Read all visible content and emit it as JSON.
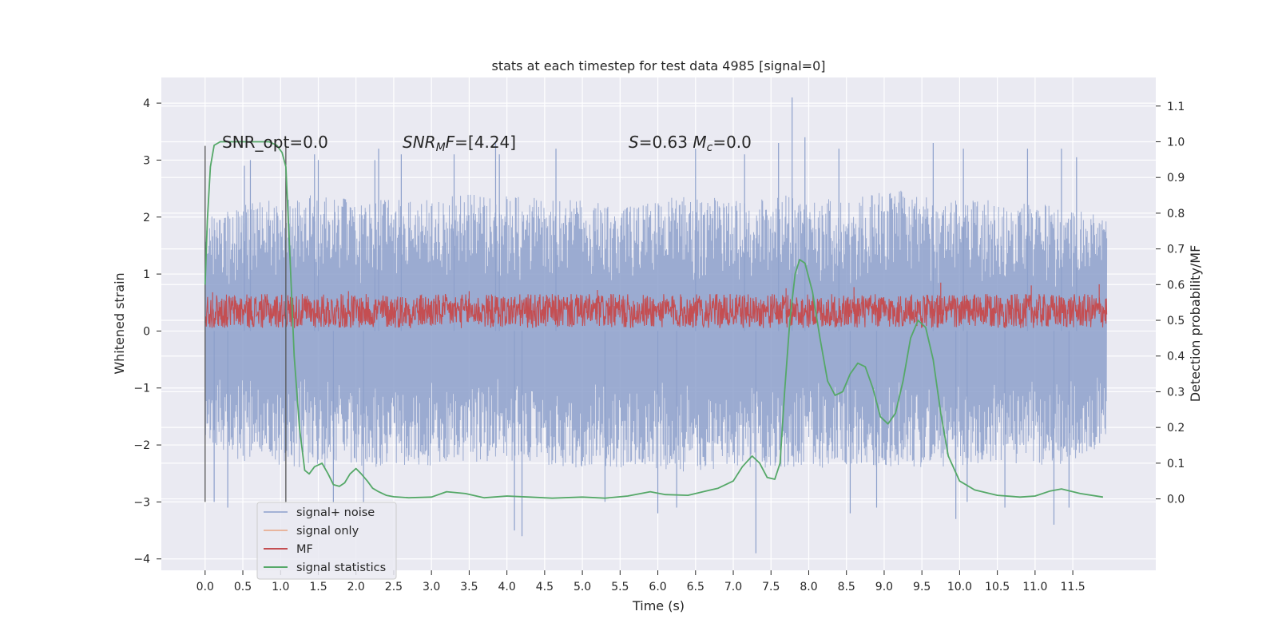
{
  "chart_data": {
    "type": "line",
    "title": "stats at each timestep for test data 4985 [signal=0]",
    "xlabel": "Time (s)",
    "ylabel": "Whitened strain",
    "ylabel_right": "Detection probability/MF",
    "xlim": [
      -0.58,
      12.6
    ],
    "ylim": [
      -4.2,
      4.45
    ],
    "ylim_right": [
      -0.2,
      1.18
    ],
    "x_ticks": [
      0.0,
      0.5,
      1.0,
      1.5,
      2.0,
      2.5,
      3.0,
      3.5,
      4.0,
      4.5,
      5.0,
      5.5,
      6.0,
      6.5,
      7.0,
      7.5,
      8.0,
      8.5,
      9.0,
      9.5,
      10.0,
      10.5,
      11.0,
      11.5
    ],
    "x_tick_labels": [
      "0.0",
      "0.5",
      "1.0",
      "1.5",
      "2.0",
      "2.5",
      "3.0",
      "3.5",
      "4.0",
      "4.5",
      "5.0",
      "5.5",
      "6.0",
      "6.5",
      "7.0",
      "7.5",
      "8.0",
      "8.5",
      "9.0",
      "9.5",
      "10.0",
      "10.5",
      "11.0",
      "11.5"
    ],
    "y_ticks": [
      -4,
      -3,
      -2,
      -1,
      0,
      1,
      2,
      3,
      4
    ],
    "y_tick_labels": [
      "−4",
      "−3",
      "−2",
      "−1",
      "0",
      "1",
      "2",
      "3",
      "4"
    ],
    "y_right_ticks": [
      0.0,
      0.1,
      0.2,
      0.3,
      0.4,
      0.5,
      0.6,
      0.7,
      0.8,
      0.9,
      1.0,
      1.1
    ],
    "y_right_tick_labels": [
      "0.0",
      "0.1",
      "0.2",
      "0.3",
      "0.4",
      "0.5",
      "0.6",
      "0.7",
      "0.8",
      "0.9",
      "1.0",
      "1.1"
    ],
    "grid": true,
    "legend_position": "lower-left",
    "annotations": [
      {
        "text": "SNR_opt=0.0",
        "x": 0.2,
        "y": 3.3
      },
      {
        "text": "SNR_MF=[4.24]",
        "x": 2.6,
        "y": 3.3
      },
      {
        "text": "S=0.63   M_c=0.0",
        "x": 5.6,
        "y": 3.3
      }
    ],
    "vlines": [
      {
        "x": 0.0,
        "y0": -3.0,
        "y1": 3.25
      },
      {
        "x": 1.07,
        "y0": -3.0,
        "y1": 3.25
      }
    ],
    "series": [
      {
        "name": "signal+ noise",
        "color": "#8da0cb",
        "axis": "left",
        "x_range": [
          0.0,
          11.95
        ],
        "band_upper": [
          2.0,
          2.3,
          2.4,
          2.3,
          2.3,
          2.4,
          2.4,
          2.3,
          2.2,
          2.4,
          2.3,
          2.4,
          2.3,
          2.5,
          2.3,
          2.3,
          2.2,
          2.0
        ],
        "band_lower": [
          -2.0,
          -2.4,
          -2.4,
          -2.4,
          -2.4,
          -2.3,
          -2.3,
          -2.4,
          -2.4,
          -2.5,
          -2.4,
          -2.4,
          -2.4,
          -2.4,
          -2.4,
          -2.3,
          -2.4,
          -2.0
        ],
        "peaks": [
          [
            0.52,
            2.9
          ],
          [
            0.6,
            3.0
          ],
          [
            1.45,
            3.1
          ],
          [
            1.5,
            3.0
          ],
          [
            2.25,
            3.0
          ],
          [
            2.3,
            3.2
          ],
          [
            2.6,
            3.1
          ],
          [
            3.3,
            3.1
          ],
          [
            3.85,
            3.3
          ],
          [
            3.9,
            3.1
          ],
          [
            4.65,
            3.2
          ],
          [
            6.5,
            3.2
          ],
          [
            7.15,
            3.1
          ],
          [
            7.95,
            3.4
          ],
          [
            7.78,
            4.1
          ],
          [
            7.6,
            3.3
          ],
          [
            8.4,
            3.2
          ],
          [
            9.65,
            3.3
          ],
          [
            10.05,
            3.2
          ],
          [
            10.9,
            3.2
          ],
          [
            11.35,
            3.2
          ],
          [
            11.55,
            3.05
          ]
        ],
        "troughs": [
          [
            0.12,
            -3.0
          ],
          [
            0.3,
            -3.1
          ],
          [
            1.7,
            -3.0
          ],
          [
            2.1,
            -3.0
          ],
          [
            4.1,
            -3.5
          ],
          [
            4.2,
            -3.6
          ],
          [
            5.3,
            -3.0
          ],
          [
            6.0,
            -3.2
          ],
          [
            6.25,
            -3.1
          ],
          [
            7.3,
            -3.9
          ],
          [
            8.55,
            -3.2
          ],
          [
            8.9,
            -3.1
          ],
          [
            9.95,
            -3.3
          ],
          [
            10.1,
            -3.0
          ],
          [
            10.6,
            -3.1
          ],
          [
            11.25,
            -3.4
          ],
          [
            11.45,
            -3.1
          ]
        ]
      },
      {
        "name": "signal only",
        "color": "#e8a382",
        "axis": "left",
        "values": []
      },
      {
        "name": "MF",
        "color": "#c44e52",
        "axis": "left",
        "x_range": [
          0.0,
          11.95
        ],
        "band_upper": 0.65,
        "band_lower": 0.05,
        "peaks": [
          [
            0.1,
            0.68
          ],
          [
            1.9,
            0.7
          ],
          [
            3.5,
            0.7
          ],
          [
            5.2,
            0.72
          ],
          [
            7.7,
            0.75
          ],
          [
            8.6,
            0.77
          ],
          [
            9.75,
            0.85
          ],
          [
            10.95,
            0.8
          ],
          [
            11.85,
            0.82
          ]
        ]
      },
      {
        "name": "signal statistics",
        "color": "#55a868",
        "axis": "right",
        "x": [
          0.0,
          0.03,
          0.07,
          0.12,
          0.2,
          0.3,
          0.5,
          0.7,
          0.85,
          0.95,
          1.02,
          1.07,
          1.12,
          1.18,
          1.25,
          1.32,
          1.38,
          1.45,
          1.55,
          1.63,
          1.7,
          1.78,
          1.85,
          1.92,
          2.0,
          2.07,
          2.15,
          2.22,
          2.3,
          2.4,
          2.5,
          2.7,
          3.0,
          3.2,
          3.45,
          3.7,
          4.0,
          4.3,
          4.6,
          5.0,
          5.3,
          5.6,
          5.9,
          6.1,
          6.4,
          6.6,
          6.8,
          7.0,
          7.12,
          7.25,
          7.35,
          7.45,
          7.55,
          7.62,
          7.68,
          7.75,
          7.82,
          7.88,
          7.95,
          8.05,
          8.15,
          8.25,
          8.35,
          8.45,
          8.55,
          8.65,
          8.75,
          8.85,
          8.95,
          9.05,
          9.15,
          9.25,
          9.35,
          9.45,
          9.55,
          9.65,
          9.75,
          9.85,
          10.0,
          10.2,
          10.5,
          10.8,
          11.0,
          11.2,
          11.35,
          11.6,
          11.9
        ],
        "values": [
          0.6,
          0.78,
          0.93,
          0.99,
          1.0,
          1.0,
          1.0,
          1.0,
          1.0,
          0.99,
          0.97,
          0.93,
          0.7,
          0.4,
          0.2,
          0.08,
          0.07,
          0.09,
          0.1,
          0.07,
          0.04,
          0.035,
          0.045,
          0.07,
          0.085,
          0.07,
          0.05,
          0.03,
          0.02,
          0.01,
          0.006,
          0.003,
          0.005,
          0.02,
          0.015,
          0.003,
          0.008,
          0.005,
          0.002,
          0.005,
          0.002,
          0.008,
          0.02,
          0.012,
          0.01,
          0.02,
          0.03,
          0.05,
          0.09,
          0.12,
          0.1,
          0.06,
          0.055,
          0.1,
          0.3,
          0.5,
          0.63,
          0.67,
          0.66,
          0.58,
          0.45,
          0.33,
          0.29,
          0.3,
          0.35,
          0.38,
          0.37,
          0.31,
          0.23,
          0.21,
          0.24,
          0.33,
          0.45,
          0.5,
          0.48,
          0.39,
          0.24,
          0.12,
          0.05,
          0.025,
          0.01,
          0.005,
          0.008,
          0.022,
          0.028,
          0.015,
          0.005
        ]
      }
    ]
  }
}
